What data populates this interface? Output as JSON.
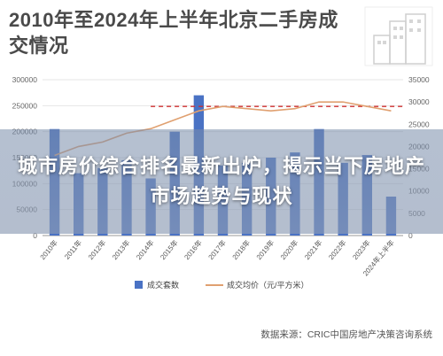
{
  "header": {
    "title": "2010年至2024年上半年北京二手房成交情况"
  },
  "banner": {
    "text": "城市房价综合排名最新出炉，揭示当下房地产市场趋势与现状"
  },
  "source": "数据来源：CRIC中国房地产决策咨询系统",
  "colors": {
    "bar": "#4a72c4",
    "line": "#e0a070",
    "ref_line": "#d03030",
    "title": "#4a4a4a"
  },
  "chart_data": {
    "type": "bar",
    "categories": [
      "2010年",
      "2011年",
      "2012年",
      "2013年",
      "2014年",
      "2015年",
      "2016年",
      "2017年",
      "2018年",
      "2019年",
      "2020年",
      "2021年",
      "2022年",
      "2023年",
      "2024年上半年"
    ],
    "series": [
      {
        "name": "成交套数",
        "type": "bar",
        "axis": "left",
        "values": [
          205000,
          120000,
          130000,
          145000,
          110000,
          200000,
          270000,
          135000,
          140000,
          150000,
          160000,
          205000,
          140000,
          155000,
          75000
        ]
      },
      {
        "name": "成交均价（元/平方米）",
        "type": "line",
        "axis": "right",
        "values": [
          18000,
          20000,
          21000,
          23000,
          24000,
          26000,
          28000,
          29000,
          28500,
          28000,
          28500,
          30000,
          30000,
          29000,
          28000
        ]
      }
    ],
    "reference_line": {
      "axis": "right",
      "value": 29000,
      "style": "dashed"
    },
    "yticks_left": [
      "300000",
      "250000",
      "200000",
      "150000",
      "100000",
      "50000",
      "0"
    ],
    "yticks_right": [
      "35000",
      "30000",
      "25000",
      "20000",
      "15000",
      "10000",
      "5000",
      "0"
    ],
    "ylim_left": [
      0,
      300000
    ],
    "ylim_right": [
      0,
      35000
    ],
    "legend_position": "bottom",
    "grid": true
  }
}
